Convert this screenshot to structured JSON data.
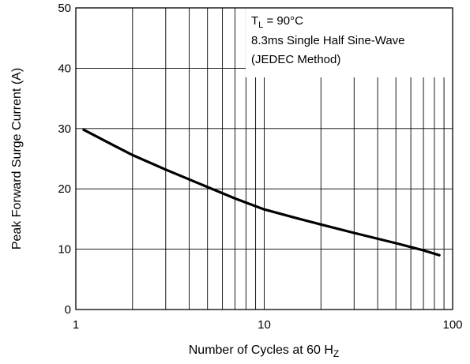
{
  "chart_data": {
    "type": "line",
    "x_scale": "log",
    "xlim": [
      1,
      100
    ],
    "ylim": [
      0,
      50
    ],
    "grid": true,
    "xlabel": "Number of Cycles at 60 H",
    "xlabel_sub": "Z",
    "ylabel": "Peak Forward Surge Current (A)",
    "x_ticks": [
      "1",
      "10",
      "100"
    ],
    "y_ticks": [
      "0",
      "10",
      "20",
      "30",
      "40",
      "50"
    ],
    "annotation": {
      "line1_main": "T",
      "line1_sub": "L",
      "line1_rest": " = 90°C",
      "line2": "8.3ms Single Half Sine-Wave",
      "line3": "(JEDEC Method)"
    },
    "series": [
      {
        "color": "#000000",
        "points": [
          [
            1.1,
            29.8
          ],
          [
            1.5,
            27.6
          ],
          [
            2,
            25.6
          ],
          [
            3,
            23.2
          ],
          [
            5,
            20.3
          ],
          [
            7,
            18.4
          ],
          [
            10,
            16.6
          ],
          [
            15,
            15.1
          ],
          [
            20,
            14.1
          ],
          [
            30,
            12.7
          ],
          [
            50,
            11.0
          ],
          [
            70,
            9.8
          ],
          [
            85,
            9.0
          ]
        ]
      }
    ]
  }
}
